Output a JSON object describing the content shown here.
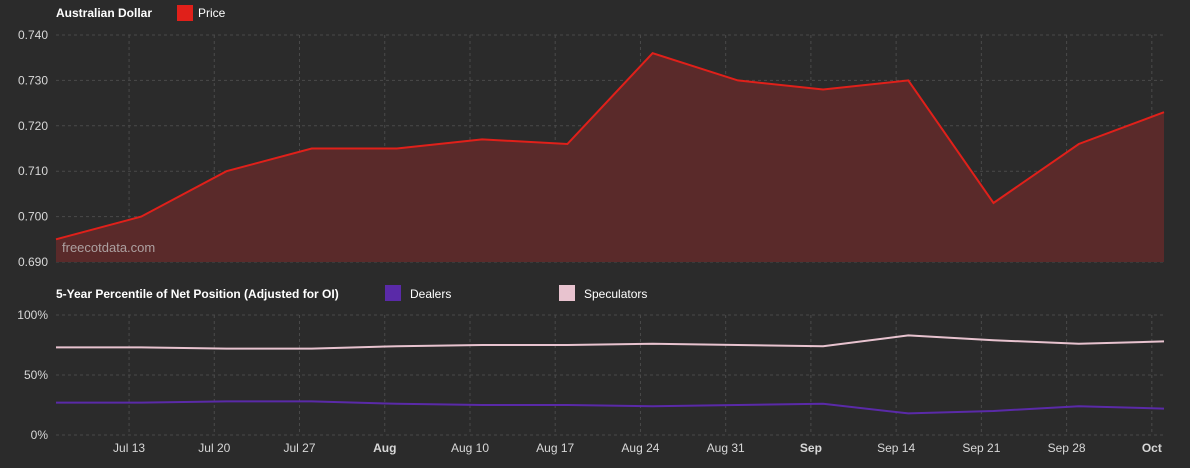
{
  "colors": {
    "background": "#2b2b2b",
    "grid": "#4a4a4a",
    "axis_text": "#d8d8d8",
    "price_line": "#e0201a",
    "price_fill": "#5a2a2a",
    "dealers": "#5a2aa8",
    "speculators": "#e8c3cf"
  },
  "chart_data": [
    {
      "type": "area",
      "title": "Australian Dollar",
      "legend": [
        {
          "name": "Price",
          "color": "#e0201a"
        }
      ],
      "watermark": "freecotdata.com",
      "ylim": [
        0.69,
        0.74
      ],
      "yticks": [
        0.74,
        0.73,
        0.72,
        0.71,
        0.7,
        0.69
      ],
      "ytick_labels": [
        "0.740",
        "0.730",
        "0.720",
        "0.710",
        "0.700",
        "0.690"
      ],
      "x": [
        "2020-07-07",
        "2020-07-14",
        "2020-07-21",
        "2020-07-28",
        "2020-08-04",
        "2020-08-11",
        "2020-08-18",
        "2020-08-25",
        "2020-09-01",
        "2020-09-08",
        "2020-09-15",
        "2020-09-22",
        "2020-09-29",
        "2020-10-06"
      ],
      "series": [
        {
          "name": "Price",
          "values": [
            0.695,
            0.7,
            0.71,
            0.715,
            0.715,
            0.717,
            0.716,
            0.736,
            0.73,
            0.728,
            0.73,
            0.703,
            0.716,
            0.723
          ]
        }
      ]
    },
    {
      "type": "line",
      "title": "5-Year Percentile of Net Position (Adjusted for OI)",
      "legend": [
        {
          "name": "Dealers",
          "color": "#5a2aa8"
        },
        {
          "name": "Speculators",
          "color": "#e8c3cf"
        }
      ],
      "ylim": [
        0,
        100
      ],
      "yticks": [
        100,
        50,
        0
      ],
      "ytick_labels": [
        "100%",
        "50%",
        "0%"
      ],
      "x": [
        "2020-07-07",
        "2020-07-14",
        "2020-07-21",
        "2020-07-28",
        "2020-08-04",
        "2020-08-11",
        "2020-08-18",
        "2020-08-25",
        "2020-09-01",
        "2020-09-08",
        "2020-09-15",
        "2020-09-22",
        "2020-09-29",
        "2020-10-06"
      ],
      "series": [
        {
          "name": "Dealers",
          "values": [
            27,
            27,
            28,
            28,
            26,
            25,
            25,
            24,
            25,
            26,
            18,
            20,
            24,
            22
          ]
        },
        {
          "name": "Speculators",
          "values": [
            73,
            73,
            72,
            72,
            74,
            75,
            75,
            76,
            75,
            74,
            83,
            79,
            76,
            78
          ]
        }
      ]
    }
  ],
  "x_axis": {
    "ticks": [
      {
        "date": "2020-07-13",
        "label": "Jul 13",
        "bold": false
      },
      {
        "date": "2020-07-20",
        "label": "Jul 20",
        "bold": false
      },
      {
        "date": "2020-07-27",
        "label": "Jul 27",
        "bold": false
      },
      {
        "date": "2020-08-03",
        "label": "Aug",
        "bold": true
      },
      {
        "date": "2020-08-10",
        "label": "Aug 10",
        "bold": false
      },
      {
        "date": "2020-08-17",
        "label": "Aug 17",
        "bold": false
      },
      {
        "date": "2020-08-24",
        "label": "Aug 24",
        "bold": false
      },
      {
        "date": "2020-08-31",
        "label": "Aug 31",
        "bold": false
      },
      {
        "date": "2020-09-07",
        "label": "Sep",
        "bold": true
      },
      {
        "date": "2020-09-14",
        "label": "Sep 14",
        "bold": false
      },
      {
        "date": "2020-09-21",
        "label": "Sep 21",
        "bold": false
      },
      {
        "date": "2020-09-28",
        "label": "Sep 28",
        "bold": false
      },
      {
        "date": "2020-10-05",
        "label": "Oct",
        "bold": true
      }
    ]
  }
}
